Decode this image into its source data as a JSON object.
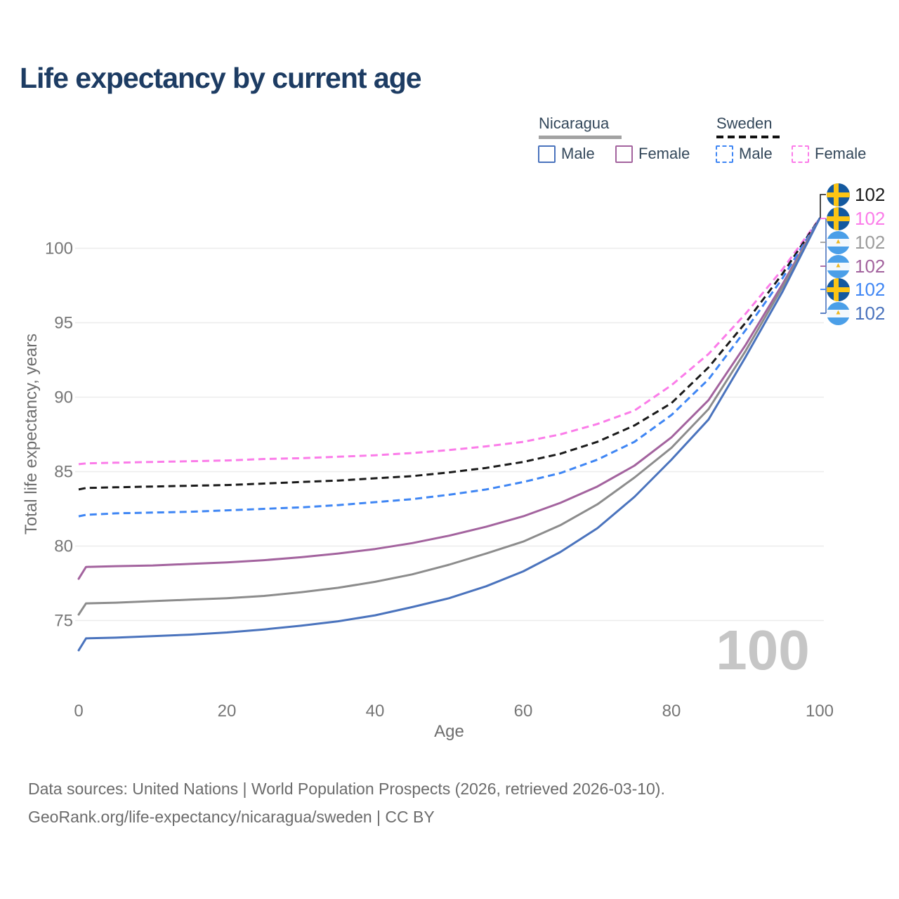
{
  "title": "Life expectancy by current age",
  "watermark_age": "100",
  "legend": {
    "groups": [
      {
        "name": "Nicaragua",
        "line_style": "solid",
        "line_color": "#a2a2a2",
        "items": [
          {
            "label": "Male",
            "color": "#4a73bd",
            "style": "solid"
          },
          {
            "label": "Female",
            "color": "#a3639e",
            "style": "solid"
          }
        ]
      },
      {
        "name": "Sweden",
        "line_style": "dashed",
        "line_color": "#141414",
        "items": [
          {
            "label": "Male",
            "color": "#3f86f4",
            "style": "dashed"
          },
          {
            "label": "Female",
            "color": "#fb7ce9",
            "style": "dashed"
          }
        ]
      }
    ]
  },
  "chart_data": {
    "type": "line",
    "title": "Life expectancy by current age",
    "xlabel": "Age",
    "ylabel": "Total life expectancy, years",
    "xlim": [
      0,
      100
    ],
    "ylim": [
      72.5,
      103.5
    ],
    "x_ticks": [
      0,
      20,
      40,
      60,
      80,
      100
    ],
    "y_ticks": [
      75,
      80,
      85,
      90,
      95,
      100
    ],
    "grid": "horizontal",
    "legend_position": "top-right",
    "x": [
      0,
      1,
      5,
      10,
      15,
      20,
      25,
      30,
      35,
      40,
      45,
      50,
      55,
      60,
      65,
      70,
      75,
      80,
      85,
      90,
      95,
      100
    ],
    "series": [
      {
        "name": "Sweden Female",
        "country": "Sweden",
        "sex": "Female",
        "color": "#fb7ce9",
        "dash": "dashed",
        "values": [
          85.5,
          85.55,
          85.6,
          85.65,
          85.7,
          85.75,
          85.85,
          85.9,
          86.0,
          86.1,
          86.25,
          86.45,
          86.7,
          87.0,
          87.5,
          88.2,
          89.1,
          90.8,
          92.9,
          95.6,
          98.6,
          102
        ]
      },
      {
        "name": "Sweden",
        "country": "Sweden",
        "sex": "Both",
        "color": "#1a1a1a",
        "dash": "dashed",
        "values": [
          83.8,
          83.9,
          83.95,
          84.0,
          84.05,
          84.1,
          84.2,
          84.3,
          84.4,
          84.55,
          84.7,
          84.95,
          85.25,
          85.65,
          86.2,
          87.0,
          88.1,
          89.6,
          92.0,
          95.0,
          98.3,
          102
        ]
      },
      {
        "name": "Sweden Male",
        "country": "Sweden",
        "sex": "Male",
        "color": "#3f86f4",
        "dash": "dashed",
        "values": [
          82.0,
          82.1,
          82.2,
          82.25,
          82.3,
          82.4,
          82.5,
          82.6,
          82.75,
          82.95,
          83.15,
          83.45,
          83.8,
          84.3,
          84.9,
          85.8,
          87.0,
          88.8,
          91.2,
          94.5,
          98.0,
          102
        ]
      },
      {
        "name": "Nicaragua Female",
        "country": "Nicaragua",
        "sex": "Female",
        "color": "#a3639e",
        "dash": "solid",
        "values": [
          77.8,
          78.6,
          78.65,
          78.7,
          78.8,
          78.9,
          79.05,
          79.25,
          79.5,
          79.8,
          80.2,
          80.7,
          81.3,
          82.0,
          82.9,
          84.0,
          85.4,
          87.3,
          89.8,
          93.5,
          97.6,
          102
        ]
      },
      {
        "name": "Nicaragua",
        "country": "Nicaragua",
        "sex": "Both",
        "color": "#8c8c8c",
        "dash": "solid",
        "values": [
          75.4,
          76.15,
          76.2,
          76.3,
          76.4,
          76.5,
          76.65,
          76.9,
          77.2,
          77.6,
          78.1,
          78.75,
          79.5,
          80.3,
          81.4,
          82.8,
          84.6,
          86.6,
          89.2,
          93.1,
          97.4,
          102
        ]
      },
      {
        "name": "Nicaragua Male",
        "country": "Nicaragua",
        "sex": "Male",
        "color": "#4a73bd",
        "dash": "solid",
        "values": [
          73.0,
          73.8,
          73.85,
          73.95,
          74.05,
          74.2,
          74.4,
          74.65,
          74.95,
          75.35,
          75.9,
          76.5,
          77.3,
          78.3,
          79.6,
          81.2,
          83.3,
          85.8,
          88.5,
          92.7,
          97.1,
          102
        ]
      }
    ]
  },
  "end_labels": [
    {
      "flag": "sweden",
      "series": "Sweden",
      "value": "102",
      "color": "#1a1a1a"
    },
    {
      "flag": "sweden",
      "series": "Sweden Female",
      "value": "102",
      "color": "#fb7ce9"
    },
    {
      "flag": "nicaragua",
      "series": "Nicaragua",
      "value": "102",
      "color": "#9c9c9c"
    },
    {
      "flag": "nicaragua",
      "series": "Nicaragua Female",
      "value": "102",
      "color": "#a3639e"
    },
    {
      "flag": "sweden",
      "series": "Sweden Male",
      "value": "102",
      "color": "#3f86f4"
    },
    {
      "flag": "nicaragua",
      "series": "Nicaragua Male",
      "value": "102",
      "color": "#4a73bd"
    }
  ],
  "footer": {
    "line1": "Data sources: United Nations | World Population Prospects (2026, retrieved 2026-03-10).",
    "line2": "GeoRank.org/life-expectancy/nicaragua/sweden | CC BY"
  }
}
